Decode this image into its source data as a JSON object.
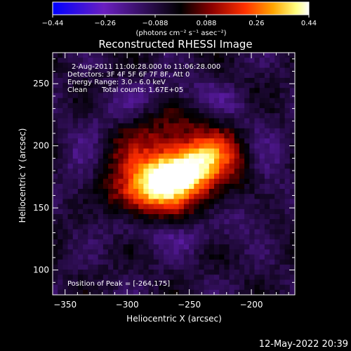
{
  "chart_data": {
    "type": "heatmap",
    "title": "Reconstructed RHESSI Image",
    "xlabel": "Heliocentric X (arcsec)",
    "ylabel": "Heliocentric Y (arcsec)",
    "xlim": [
      -360,
      -165
    ],
    "ylim": [
      80,
      275
    ],
    "x_ticks": [
      -350,
      -300,
      -250,
      -200
    ],
    "x_tick_labels": [
      "−350",
      "−300",
      "−250",
      "−200"
    ],
    "y_ticks": [
      100,
      150,
      200,
      250
    ],
    "y_tick_labels": [
      "100",
      "150",
      "200",
      "250"
    ],
    "colorbar": {
      "min": -0.44,
      "max": 0.44,
      "ticks": [
        -0.44,
        -0.26,
        -0.088,
        0.088,
        0.26,
        0.44
      ],
      "tick_labels": [
        "−0.44",
        "−0.26",
        "−0.088",
        "0.088",
        "0.26",
        "0.44"
      ],
      "units": "(photons cm⁻² s⁻¹ asec⁻²)",
      "colormap": [
        "#0000ff",
        "#6a1fc0",
        "#000000",
        "#8b0000",
        "#ff3000",
        "#ffa500",
        "#ffff80",
        "#ffffff"
      ]
    },
    "annotations": {
      "time_range": "2-Aug-2011 11:00:28.000 to 11:06:28.000",
      "detectors": "Detectors: 3F 4F 5F 6F 7F 8F, Att 0",
      "energy_range": "Energy Range: 3.0 - 6.0 keV",
      "algorithm": "Clean",
      "total_counts": "Total counts: 1.67E+05",
      "peak": "Position of Peak = [-264,175]"
    },
    "peak_position": [
      -264,
      175
    ],
    "peak_value": 0.44,
    "background_level": -0.08
  },
  "footer": {
    "timestamp": "12-May-2022 20:39"
  }
}
